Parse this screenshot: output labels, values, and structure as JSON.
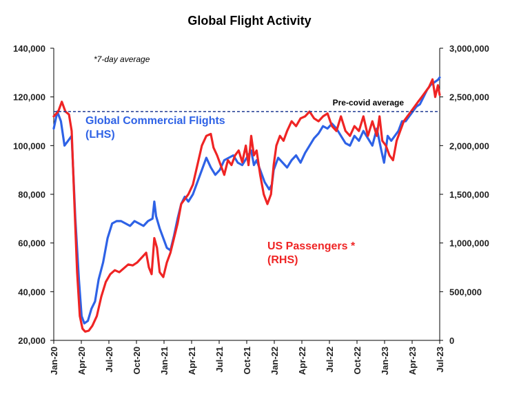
{
  "chart_data": {
    "type": "line",
    "title": "Global Flight Activity",
    "annotation": "*7-day average",
    "reference_line": {
      "label": "Pre-covid average",
      "value_lhs": 114000
    },
    "x_ticks": [
      "Jan-20",
      "Apr-20",
      "Jul-20",
      "Oct-20",
      "Jan-21",
      "Apr-21",
      "Jul-21",
      "Oct-21",
      "Jan-22",
      "Apr-22",
      "Jul-22",
      "Oct-22",
      "Jan-23",
      "Apr-23",
      "Jul-23"
    ],
    "left_axis": {
      "ylim": [
        20000,
        140000
      ],
      "ticks": [
        20000,
        40000,
        60000,
        80000,
        100000,
        120000,
        140000
      ],
      "tick_labels": [
        "20,000",
        "40,000",
        "60,000",
        "80,000",
        "100,000",
        "120,000",
        "140,000"
      ]
    },
    "right_axis": {
      "ylim": [
        0,
        3000000
      ],
      "ticks": [
        0,
        500000,
        1000000,
        1500000,
        2000000,
        2500000,
        3000000
      ],
      "tick_labels": [
        "0",
        "500,000",
        "1,000,000",
        "1,500,000",
        "2,000,000",
        "2,500,000",
        "3,000,000"
      ]
    },
    "x_range": [
      0,
      43
    ],
    "series": [
      {
        "name": "Global Commercial Flights",
        "label_lines": [
          "Global Commercial Flights",
          "(LHS)"
        ],
        "axis": "left",
        "color": "#2e62e6",
        "points": [
          [
            0,
            107000
          ],
          [
            0.4,
            114000
          ],
          [
            0.8,
            110000
          ],
          [
            1.2,
            100000
          ],
          [
            1.6,
            102000
          ],
          [
            2.0,
            104000
          ],
          [
            2.4,
            70000
          ],
          [
            2.8,
            45000
          ],
          [
            3.1,
            30000
          ],
          [
            3.4,
            27000
          ],
          [
            3.8,
            28000
          ],
          [
            4.2,
            33000
          ],
          [
            4.6,
            36000
          ],
          [
            5.0,
            45000
          ],
          [
            5.5,
            52000
          ],
          [
            6.0,
            62000
          ],
          [
            6.5,
            68000
          ],
          [
            7.0,
            69000
          ],
          [
            7.5,
            69000
          ],
          [
            8.0,
            68000
          ],
          [
            8.5,
            67000
          ],
          [
            9.0,
            69000
          ],
          [
            9.5,
            68000
          ],
          [
            10.0,
            67000
          ],
          [
            10.5,
            69000
          ],
          [
            11.0,
            70000
          ],
          [
            11.2,
            77000
          ],
          [
            11.4,
            71000
          ],
          [
            11.8,
            66000
          ],
          [
            12.2,
            62000
          ],
          [
            12.6,
            58000
          ],
          [
            13.0,
            57000
          ],
          [
            13.4,
            63000
          ],
          [
            13.8,
            70000
          ],
          [
            14.2,
            76000
          ],
          [
            14.6,
            79000
          ],
          [
            15.0,
            77000
          ],
          [
            15.5,
            80000
          ],
          [
            16.0,
            85000
          ],
          [
            16.5,
            90000
          ],
          [
            17.0,
            95000
          ],
          [
            17.5,
            91000
          ],
          [
            18.0,
            88000
          ],
          [
            18.5,
            90000
          ],
          [
            19.0,
            94000
          ],
          [
            19.5,
            95000
          ],
          [
            20.0,
            96000
          ],
          [
            20.5,
            93000
          ],
          [
            21.0,
            92000
          ],
          [
            21.5,
            95000
          ],
          [
            22.0,
            98000
          ],
          [
            22.3,
            92000
          ],
          [
            22.6,
            94000
          ],
          [
            23.0,
            90000
          ],
          [
            23.5,
            85000
          ],
          [
            24.0,
            82000
          ],
          [
            24.3,
            84000
          ],
          [
            24.5,
            90000
          ],
          [
            25.0,
            95000
          ],
          [
            25.5,
            93000
          ],
          [
            26.0,
            91000
          ],
          [
            26.5,
            94000
          ],
          [
            27.0,
            96000
          ],
          [
            27.5,
            93000
          ],
          [
            28.0,
            97000
          ],
          [
            28.5,
            100000
          ],
          [
            29.0,
            103000
          ],
          [
            29.5,
            105000
          ],
          [
            30.0,
            108000
          ],
          [
            30.5,
            107000
          ],
          [
            31.0,
            109000
          ],
          [
            31.5,
            107000
          ],
          [
            32.0,
            104000
          ],
          [
            32.5,
            101000
          ],
          [
            33.0,
            100000
          ],
          [
            33.5,
            104000
          ],
          [
            34.0,
            102000
          ],
          [
            34.5,
            106000
          ],
          [
            35.0,
            103000
          ],
          [
            35.5,
            100000
          ],
          [
            36.0,
            107000
          ],
          [
            36.5,
            98000
          ],
          [
            36.8,
            93000
          ],
          [
            37.2,
            104000
          ],
          [
            37.6,
            102000
          ],
          [
            38.0,
            104000
          ],
          [
            38.4,
            106000
          ],
          [
            38.8,
            110000
          ],
          [
            39.2,
            110000
          ],
          [
            39.6,
            112000
          ],
          [
            40.0,
            114000
          ],
          [
            40.4,
            116000
          ],
          [
            40.8,
            117000
          ],
          [
            41.2,
            120000
          ],
          [
            41.6,
            123000
          ],
          [
            42.0,
            125000
          ],
          [
            42.4,
            126000
          ],
          [
            42.8,
            127000
          ],
          [
            43.0,
            128000
          ]
        ]
      },
      {
        "name": "US Passengers *",
        "label_lines": [
          "US Passengers *",
          "(RHS)"
        ],
        "axis": "right",
        "color": "#ef2424",
        "points": [
          [
            0,
            2300000
          ],
          [
            0.5,
            2350000
          ],
          [
            0.9,
            2450000
          ],
          [
            1.3,
            2350000
          ],
          [
            1.7,
            2320000
          ],
          [
            2.0,
            2150000
          ],
          [
            2.3,
            1400000
          ],
          [
            2.6,
            700000
          ],
          [
            2.9,
            250000
          ],
          [
            3.2,
            120000
          ],
          [
            3.5,
            90000
          ],
          [
            3.9,
            100000
          ],
          [
            4.3,
            150000
          ],
          [
            4.8,
            250000
          ],
          [
            5.3,
            450000
          ],
          [
            5.8,
            600000
          ],
          [
            6.3,
            680000
          ],
          [
            6.8,
            720000
          ],
          [
            7.3,
            700000
          ],
          [
            7.8,
            740000
          ],
          [
            8.3,
            780000
          ],
          [
            8.8,
            770000
          ],
          [
            9.3,
            800000
          ],
          [
            9.8,
            850000
          ],
          [
            10.3,
            900000
          ],
          [
            10.6,
            750000
          ],
          [
            10.9,
            680000
          ],
          [
            11.2,
            1050000
          ],
          [
            11.5,
            950000
          ],
          [
            11.8,
            700000
          ],
          [
            12.2,
            650000
          ],
          [
            12.6,
            800000
          ],
          [
            13.0,
            900000
          ],
          [
            13.4,
            1050000
          ],
          [
            13.8,
            1200000
          ],
          [
            14.2,
            1400000
          ],
          [
            14.6,
            1450000
          ],
          [
            15.0,
            1500000
          ],
          [
            15.5,
            1600000
          ],
          [
            16.0,
            1800000
          ],
          [
            16.5,
            2000000
          ],
          [
            17.0,
            2100000
          ],
          [
            17.5,
            2120000
          ],
          [
            17.8,
            1980000
          ],
          [
            18.2,
            1900000
          ],
          [
            18.6,
            1800000
          ],
          [
            19.0,
            1700000
          ],
          [
            19.4,
            1850000
          ],
          [
            19.8,
            1800000
          ],
          [
            20.2,
            1900000
          ],
          [
            20.6,
            1950000
          ],
          [
            21.0,
            1830000
          ],
          [
            21.4,
            2000000
          ],
          [
            21.7,
            1800000
          ],
          [
            22.0,
            2100000
          ],
          [
            22.3,
            1900000
          ],
          [
            22.6,
            1950000
          ],
          [
            23.0,
            1700000
          ],
          [
            23.4,
            1500000
          ],
          [
            23.8,
            1400000
          ],
          [
            24.2,
            1500000
          ],
          [
            24.5,
            1800000
          ],
          [
            24.8,
            2000000
          ],
          [
            25.2,
            2100000
          ],
          [
            25.6,
            2050000
          ],
          [
            26.0,
            2150000
          ],
          [
            26.5,
            2250000
          ],
          [
            27.0,
            2200000
          ],
          [
            27.5,
            2280000
          ],
          [
            28.0,
            2300000
          ],
          [
            28.5,
            2350000
          ],
          [
            29.0,
            2280000
          ],
          [
            29.5,
            2250000
          ],
          [
            30.0,
            2300000
          ],
          [
            30.5,
            2330000
          ],
          [
            31.0,
            2200000
          ],
          [
            31.5,
            2150000
          ],
          [
            32.0,
            2300000
          ],
          [
            32.5,
            2150000
          ],
          [
            33.0,
            2100000
          ],
          [
            33.5,
            2200000
          ],
          [
            34.0,
            2150000
          ],
          [
            34.5,
            2300000
          ],
          [
            35.0,
            2100000
          ],
          [
            35.5,
            2250000
          ],
          [
            36.0,
            2100000
          ],
          [
            36.3,
            2300000
          ],
          [
            36.6,
            2050000
          ],
          [
            37.0,
            2000000
          ],
          [
            37.4,
            1900000
          ],
          [
            37.8,
            1850000
          ],
          [
            38.2,
            2050000
          ],
          [
            38.6,
            2150000
          ],
          [
            39.0,
            2250000
          ],
          [
            39.4,
            2300000
          ],
          [
            39.8,
            2350000
          ],
          [
            40.2,
            2400000
          ],
          [
            40.6,
            2450000
          ],
          [
            41.0,
            2500000
          ],
          [
            41.4,
            2550000
          ],
          [
            41.8,
            2600000
          ],
          [
            42.2,
            2680000
          ],
          [
            42.5,
            2500000
          ],
          [
            42.8,
            2620000
          ],
          [
            43.0,
            2520000
          ]
        ]
      }
    ]
  }
}
